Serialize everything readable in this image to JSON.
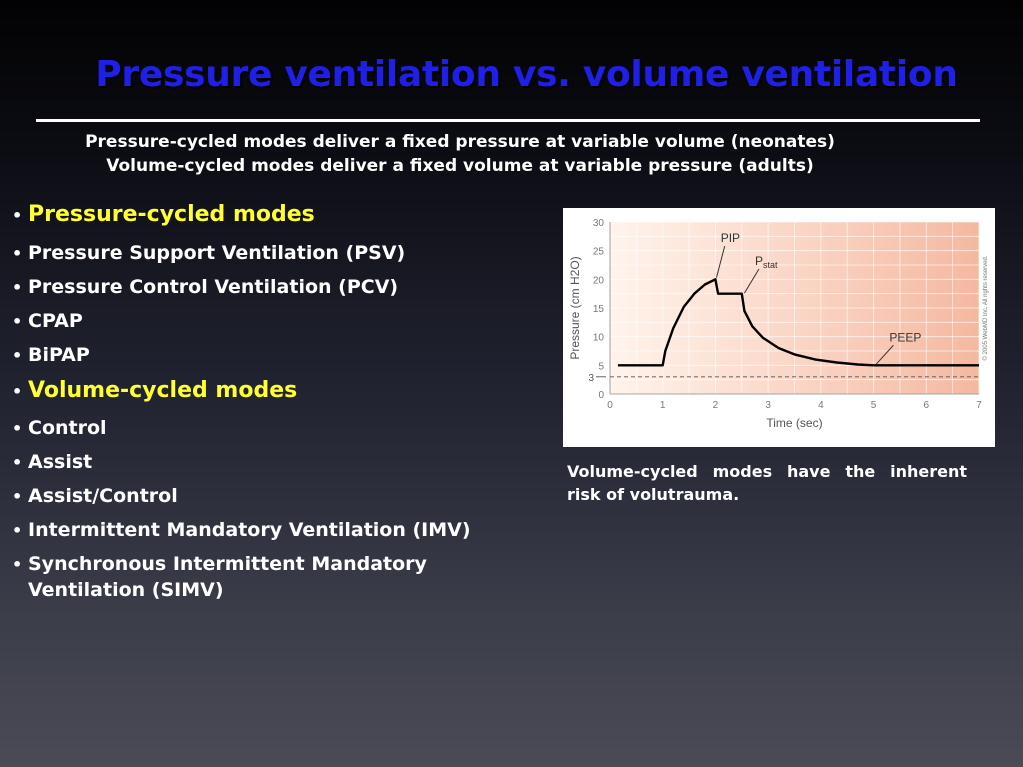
{
  "slide": {
    "title": "Pressure ventilation vs. volume ventilation",
    "subtitle_lines": [
      "Pressure-cycled modes deliver a fixed pressure at variable volume (neonates)",
      "Volume-cycled modes deliver a fixed volume at variable pressure (adults)"
    ],
    "bullets": [
      {
        "text": "Pressure-cycled modes",
        "heading": true
      },
      {
        "text": "Pressure Support Ventilation (PSV)",
        "heading": false
      },
      {
        "text": "Pressure Control Ventilation (PCV)",
        "heading": false
      },
      {
        "text": "CPAP",
        "heading": false
      },
      {
        "text": "BiPAP",
        "heading": false
      },
      {
        "text": "Volume-cycled modes",
        "heading": true
      },
      {
        "text": "Control",
        "heading": false
      },
      {
        "text": "Assist",
        "heading": false
      },
      {
        "text": "Assist/Control",
        "heading": false
      },
      {
        "text": "Intermittent Mandatory Ventilation (IMV)",
        "heading": false
      },
      {
        "text": "Synchronous Intermittent Mandatory",
        "heading": false
      },
      {
        "text": "Ventilation (SIMV)",
        "heading": false
      }
    ],
    "bullet_glyph": "•",
    "caption": "Volume-cycled modes have the inherent risk of volutrauma.",
    "colors": {
      "title": "#1f1fe6",
      "heading_bullet": "#ffff33",
      "text": "#ffffff"
    }
  },
  "chart_data": {
    "type": "line",
    "title": "",
    "xlabel": "Time (sec)",
    "ylabel": "Pressure (cm H2O)",
    "xlim": [
      0,
      7
    ],
    "ylim": [
      0,
      30
    ],
    "x_ticks": [
      "0",
      "1",
      "2",
      "3",
      "4",
      "5",
      "6",
      "7"
    ],
    "y_ticks": [
      "0",
      "5",
      "10",
      "15",
      "20",
      "25",
      "30"
    ],
    "reference_lines": [
      {
        "y": 3,
        "label": "3",
        "style": "dashed"
      }
    ],
    "series": [
      {
        "values_x": [
          0.15,
          1.0,
          1.05,
          1.2,
          1.4,
          1.6,
          1.8,
          2.0,
          2.05,
          2.5,
          2.55,
          2.7,
          2.9,
          3.2,
          3.5,
          3.9,
          4.3,
          4.7,
          5.0,
          6.0,
          7.0
        ],
        "values_y": [
          5,
          5,
          7.5,
          11.5,
          15.2,
          17.5,
          19.1,
          20,
          17.5,
          17.5,
          14.5,
          11.8,
          9.8,
          8.0,
          6.9,
          6.0,
          5.5,
          5.15,
          5,
          5,
          5
        ]
      }
    ],
    "annotations": [
      {
        "text": "PIP",
        "x": 2.1,
        "y": 26.5
      },
      {
        "text": "P",
        "subscript": "stat",
        "x": 2.75,
        "y": 22.5
      },
      {
        "text": "PEEP",
        "x": 5.3,
        "y": 9.2
      }
    ],
    "copyright": "© 2005 WebMD Inc. All rights reserved.",
    "background_gradient": [
      "#fff4ec",
      "#f5b8a0"
    ],
    "grid": true
  }
}
